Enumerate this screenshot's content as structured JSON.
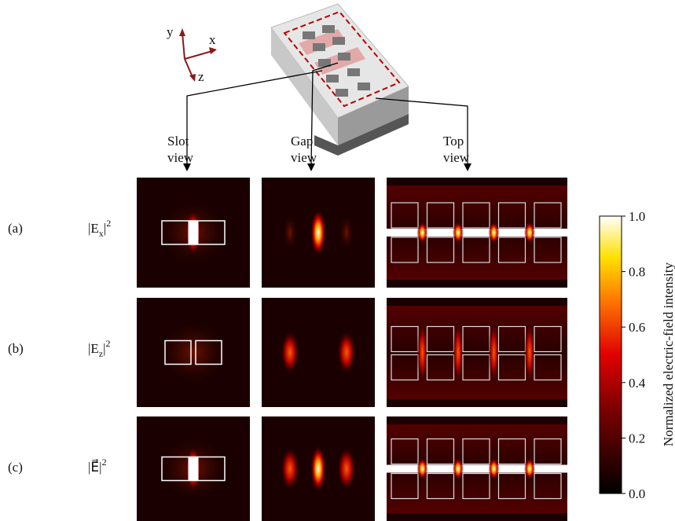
{
  "axes_labels": {
    "y": "y",
    "x": "x",
    "z": "z"
  },
  "views": [
    "Slot\nview",
    "Gap\nview",
    "Top\nview"
  ],
  "rows": [
    {
      "label": "(a)",
      "field": {
        "prefix": "|E",
        "sub": "x",
        "suffix": "|",
        "sup": "2"
      }
    },
    {
      "label": "(b)",
      "field": {
        "prefix": "|E",
        "sub": "z",
        "suffix": "|",
        "sup": "2"
      }
    },
    {
      "label": "(c)",
      "field": {
        "prefix": "|E⃗",
        "sub": "",
        "suffix": "|",
        "sup": "2"
      }
    }
  ],
  "colorbar": {
    "label": "Normalized electric-field intensity",
    "lim": [
      0,
      1
    ],
    "ticks": [
      {
        "value": 0,
        "label": "0.0"
      },
      {
        "value": 0.2,
        "label": "0.2"
      },
      {
        "value": 0.4,
        "label": "0.4"
      },
      {
        "value": 0.6,
        "label": "0.6"
      },
      {
        "value": 0.8,
        "label": "0.8"
      },
      {
        "value": 1,
        "label": "1.0"
      }
    ]
  }
}
